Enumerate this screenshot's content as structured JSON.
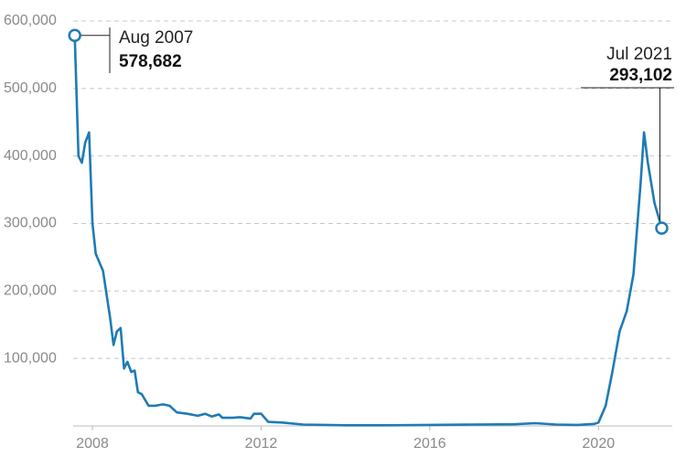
{
  "chart_data": {
    "type": "line",
    "x": [
      2007.58,
      2007.67,
      2007.75,
      2007.83,
      2007.92,
      2008.0,
      2008.08,
      2008.25,
      2008.42,
      2008.5,
      2008.58,
      2008.67,
      2008.75,
      2008.83,
      2008.92,
      2009.0,
      2009.08,
      2009.17,
      2009.33,
      2009.5,
      2009.67,
      2009.83,
      2010.0,
      2010.25,
      2010.5,
      2010.67,
      2010.83,
      2011.0,
      2011.08,
      2011.33,
      2011.5,
      2011.75,
      2011.83,
      2012.0,
      2012.17,
      2012.5,
      2013.0,
      2014.0,
      2015.0,
      2016.0,
      2017.0,
      2018.0,
      2018.5,
      2019.0,
      2019.5,
      2019.9,
      2020.0,
      2020.17,
      2020.33,
      2020.5,
      2020.67,
      2020.83,
      2021.0,
      2021.08,
      2021.17,
      2021.33,
      2021.5
    ],
    "series": [
      {
        "color": "#1f7bb4",
        "values": [
          578682,
          400000,
          390000,
          420000,
          435000,
          300000,
          255000,
          230000,
          160000,
          120000,
          140000,
          145000,
          85000,
          95000,
          80000,
          82000,
          50000,
          47000,
          30000,
          30000,
          32000,
          30000,
          20000,
          18000,
          15000,
          18000,
          14000,
          17000,
          12000,
          12000,
          13000,
          11000,
          18000,
          18000,
          6000,
          5000,
          2000,
          1000,
          1000,
          1500,
          2000,
          2500,
          4000,
          2000,
          1500,
          3000,
          5000,
          30000,
          80000,
          140000,
          170000,
          225000,
          360000,
          435000,
          390000,
          330000,
          293102
        ]
      }
    ],
    "xlim": [
      2007.5,
      2021.75
    ],
    "xticks": [
      2008,
      2012,
      2016,
      2020
    ],
    "ylim": [
      0,
      600000
    ],
    "yticks": [
      {
        "value": 100000,
        "label": "100,000"
      },
      {
        "value": 200000,
        "label": "200,000"
      },
      {
        "value": 300000,
        "label": "300,000"
      },
      {
        "value": 400000,
        "label": "400,000"
      },
      {
        "value": 500000,
        "label": "500,000"
      },
      {
        "value": 600000,
        "label": "600,000"
      }
    ],
    "grid": true,
    "annotations": [
      {
        "date": "Aug 2007",
        "label": "578,682"
      },
      {
        "date": "Jul 2021",
        "label": "293,102"
      }
    ]
  }
}
